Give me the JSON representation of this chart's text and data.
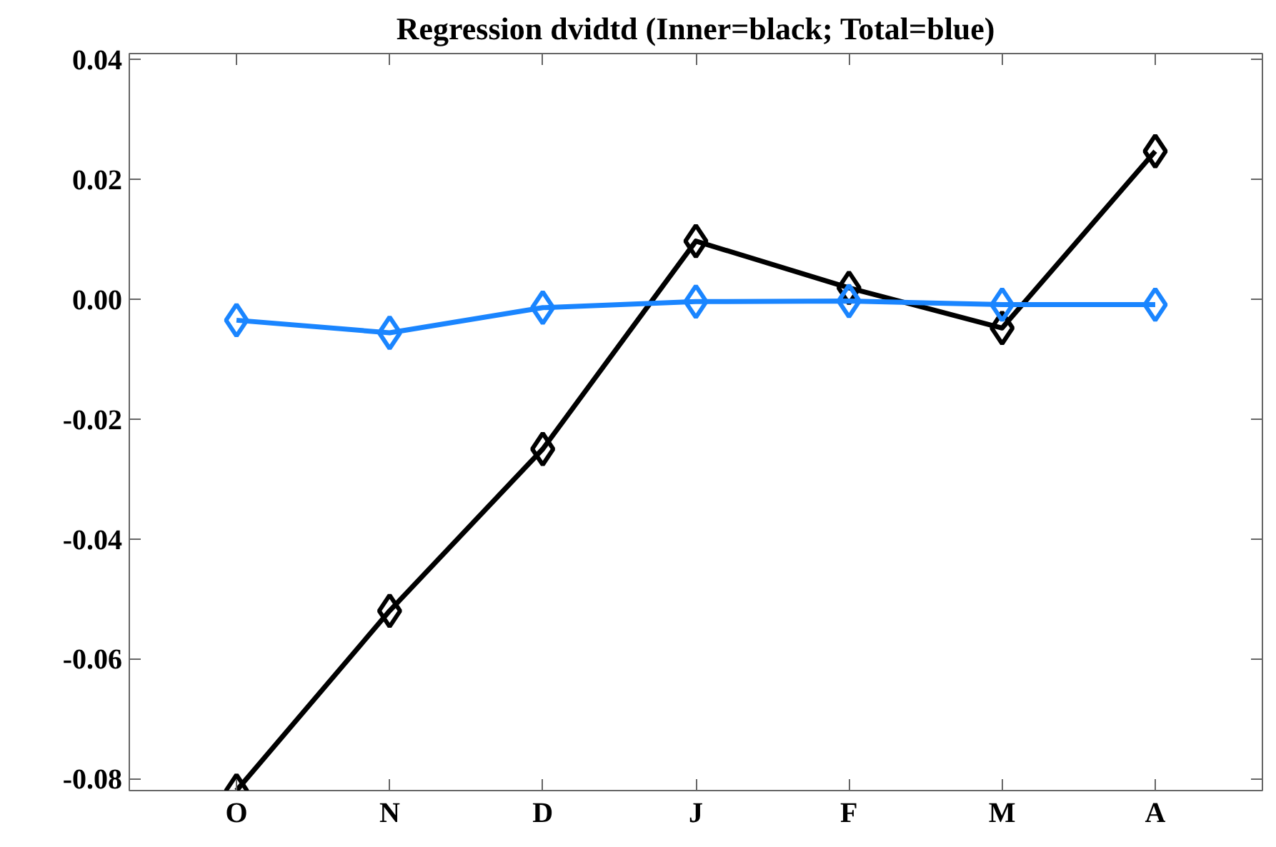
{
  "chart_data": {
    "type": "line",
    "title": "Regression dvidtd (Inner=black; Total=blue)",
    "categories": [
      "O",
      "N",
      "D",
      "J",
      "F",
      "M",
      "A"
    ],
    "series": [
      {
        "color": "#000000",
        "values": [
          -0.082,
          -0.052,
          -0.025,
          0.0097,
          0.0019,
          -0.0048,
          0.0247
        ]
      },
      {
        "color": "#1a85ff",
        "values": [
          -0.0035,
          -0.0056,
          -0.0014,
          -0.0004,
          -0.0003,
          -0.0009,
          -0.0009
        ]
      }
    ],
    "ylim": [
      -0.082,
      0.041
    ],
    "yticks": [
      {
        "value": -0.08,
        "label": "-0.08"
      },
      {
        "value": -0.06,
        "label": "-0.06"
      },
      {
        "value": -0.04,
        "label": "-0.04"
      },
      {
        "value": -0.02,
        "label": "-0.02"
      },
      {
        "value": 0,
        "label": "0.00"
      },
      {
        "value": 0.02,
        "label": "0.02"
      },
      {
        "value": 0.04,
        "label": "0.04"
      }
    ],
    "marker": "diamond",
    "line_style": "solid",
    "grid": false
  }
}
